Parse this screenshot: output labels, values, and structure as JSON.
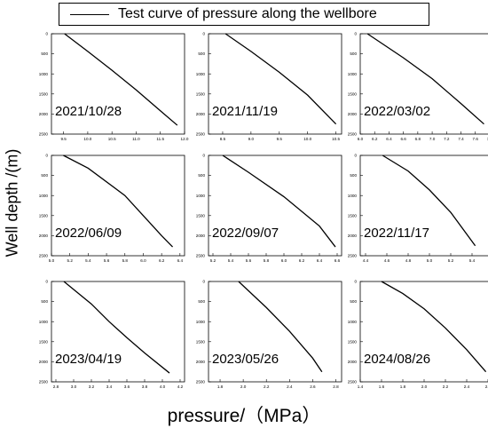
{
  "legend": {
    "label": "Test curve of pressure along the wellbore"
  },
  "ylabel": "Well depth /(m)",
  "xlabel": "pressure/（MPa）",
  "chart_data": [
    {
      "type": "line",
      "date": "2021/10/28",
      "xlim": [
        9.25,
        12.0
      ],
      "xticks": [
        "9.5",
        "10.0",
        "10.5",
        "11.0",
        "11.5",
        "12.0"
      ],
      "xtick_values": [
        9.5,
        10.0,
        10.5,
        11.0,
        11.5,
        12.0
      ],
      "ylim": [
        2500,
        0
      ],
      "yticks": [
        "0",
        "500",
        "1000",
        "1500",
        "2000",
        "2500"
      ],
      "ytick_values": [
        0,
        500,
        1000,
        1500,
        2000,
        2500
      ],
      "x": [
        9.52,
        10.0,
        10.5,
        11.0,
        11.5,
        11.85
      ],
      "y": [
        0,
        440,
        910,
        1400,
        1920,
        2280
      ]
    },
    {
      "type": "line",
      "date": "2021/11/19",
      "xlim": [
        8.25,
        10.6
      ],
      "xticks": [
        "8.5",
        "9.0",
        "9.5",
        "10.0",
        "10.5"
      ],
      "xtick_values": [
        8.5,
        9.0,
        9.5,
        10.0,
        10.5
      ],
      "ylim": [
        2500,
        0
      ],
      "yticks": [
        "0",
        "500",
        "1000",
        "1500",
        "2000",
        "2500"
      ],
      "ytick_values": [
        0,
        500,
        1000,
        1500,
        2000,
        2500
      ],
      "x": [
        8.55,
        9.0,
        9.5,
        10.0,
        10.5
      ],
      "y": [
        0,
        440,
        960,
        1530,
        2250
      ]
    },
    {
      "type": "line",
      "date": "2022/03/02",
      "xlim": [
        6.0,
        7.85
      ],
      "xticks": [
        "6.0",
        "6.2",
        "6.4",
        "6.6",
        "6.8",
        "7.0",
        "7.2",
        "7.4",
        "7.6",
        "7.8"
      ],
      "xtick_values": [
        6.0,
        6.2,
        6.4,
        6.6,
        6.8,
        7.0,
        7.2,
        7.4,
        7.6,
        7.8
      ],
      "ylim": [
        2500,
        0
      ],
      "yticks": [
        "0",
        "500",
        "1000",
        "1500",
        "2000",
        "2500"
      ],
      "ytick_values": [
        0,
        500,
        1000,
        1500,
        2000,
        2500
      ],
      "x": [
        6.1,
        6.6,
        7.0,
        7.4,
        7.72
      ],
      "y": [
        0,
        600,
        1120,
        1740,
        2250
      ]
    },
    {
      "type": "line",
      "date": "2022/06/09",
      "xlim": [
        5.0,
        6.45
      ],
      "xticks": [
        "5.0",
        "5.2",
        "5.4",
        "5.6",
        "5.8",
        "6.0",
        "6.2",
        "6.4"
      ],
      "xtick_values": [
        5.0,
        5.2,
        5.4,
        5.6,
        5.8,
        6.0,
        6.2,
        6.4
      ],
      "ylim": [
        2500,
        0
      ],
      "yticks": [
        "0",
        "500",
        "1000",
        "1500",
        "2000",
        "2500"
      ],
      "ytick_values": [
        0,
        500,
        1000,
        1500,
        2000,
        2500
      ],
      "x": [
        5.13,
        5.4,
        5.8,
        6.0,
        6.2,
        6.32
      ],
      "y": [
        0,
        320,
        1000,
        1500,
        2000,
        2280
      ]
    },
    {
      "type": "line",
      "date": "2022/09/07",
      "xlim": [
        5.15,
        6.65
      ],
      "xticks": [
        "5.2",
        "5.4",
        "5.6",
        "5.8",
        "6.0",
        "6.2",
        "6.4",
        "6.6"
      ],
      "xtick_values": [
        5.2,
        5.4,
        5.6,
        5.8,
        6.0,
        6.2,
        6.4,
        6.6
      ],
      "ylim": [
        2500,
        0
      ],
      "yticks": [
        "0",
        "500",
        "1000",
        "1500",
        "2000",
        "2500"
      ],
      "ytick_values": [
        0,
        500,
        1000,
        1500,
        2000,
        2500
      ],
      "x": [
        5.31,
        5.6,
        6.0,
        6.4,
        6.58
      ],
      "y": [
        0,
        420,
        1030,
        1760,
        2280
      ]
    },
    {
      "type": "line",
      "date": "2022/11/17",
      "xlim": [
        4.35,
        5.6
      ],
      "xticks": [
        "4.4",
        "4.6",
        "4.8",
        "5.0",
        "5.2",
        "5.4",
        "5.6"
      ],
      "xtick_values": [
        4.4,
        4.6,
        4.8,
        5.0,
        5.2,
        5.4,
        5.6
      ],
      "ylim": [
        2500,
        0
      ],
      "yticks": [
        "0",
        "500",
        "1000",
        "1500",
        "2000",
        "2500"
      ],
      "ytick_values": [
        0,
        500,
        1000,
        1500,
        2000,
        2500
      ],
      "x": [
        4.56,
        4.8,
        5.0,
        5.2,
        5.43
      ],
      "y": [
        0,
        390,
        860,
        1420,
        2250
      ]
    },
    {
      "type": "line",
      "date": "2023/04/19",
      "xlim": [
        2.75,
        4.25
      ],
      "xticks": [
        "2.8",
        "3.0",
        "3.2",
        "3.4",
        "3.6",
        "3.8",
        "4.0",
        "4.2"
      ],
      "xtick_values": [
        2.8,
        3.0,
        3.2,
        3.4,
        3.6,
        3.8,
        4.0,
        4.2
      ],
      "ylim": [
        2500,
        0
      ],
      "yticks": [
        "0",
        "500",
        "1000",
        "1500",
        "2000",
        "2500"
      ],
      "ytick_values": [
        0,
        500,
        1000,
        1500,
        2000,
        2500
      ],
      "x": [
        2.89,
        3.2,
        3.4,
        3.6,
        3.8,
        4.08
      ],
      "y": [
        0,
        560,
        1000,
        1400,
        1780,
        2280
      ]
    },
    {
      "type": "line",
      "date": "2023/05/26",
      "xlim": [
        1.7,
        2.85
      ],
      "xticks": [
        "1.8",
        "2.0",
        "2.2",
        "2.4",
        "2.6",
        "2.8"
      ],
      "xtick_values": [
        1.8,
        2.0,
        2.2,
        2.4,
        2.6,
        2.8
      ],
      "ylim": [
        2500,
        0
      ],
      "yticks": [
        "0",
        "500",
        "1000",
        "1500",
        "2000",
        "2500"
      ],
      "ytick_values": [
        0,
        500,
        1000,
        1500,
        2000,
        2500
      ],
      "x": [
        1.96,
        2.2,
        2.4,
        2.6,
        2.68
      ],
      "y": [
        0,
        650,
        1240,
        1910,
        2250
      ]
    },
    {
      "type": "line",
      "date": "2024/08/26",
      "xlim": [
        1.4,
        2.65
      ],
      "xticks": [
        "1.4",
        "1.6",
        "1.8",
        "2.0",
        "2.2",
        "2.4",
        "2.6"
      ],
      "xtick_values": [
        1.4,
        1.6,
        1.8,
        2.0,
        2.2,
        2.4,
        2.6
      ],
      "ylim": [
        2500,
        0
      ],
      "yticks": [
        "0",
        "500",
        "1000",
        "1500",
        "2000",
        "2500"
      ],
      "ytick_values": [
        0,
        500,
        1000,
        1500,
        2000,
        2500
      ],
      "x": [
        1.6,
        1.8,
        2.0,
        2.2,
        2.4,
        2.58
      ],
      "y": [
        0,
        300,
        680,
        1160,
        1700,
        2250
      ]
    }
  ]
}
